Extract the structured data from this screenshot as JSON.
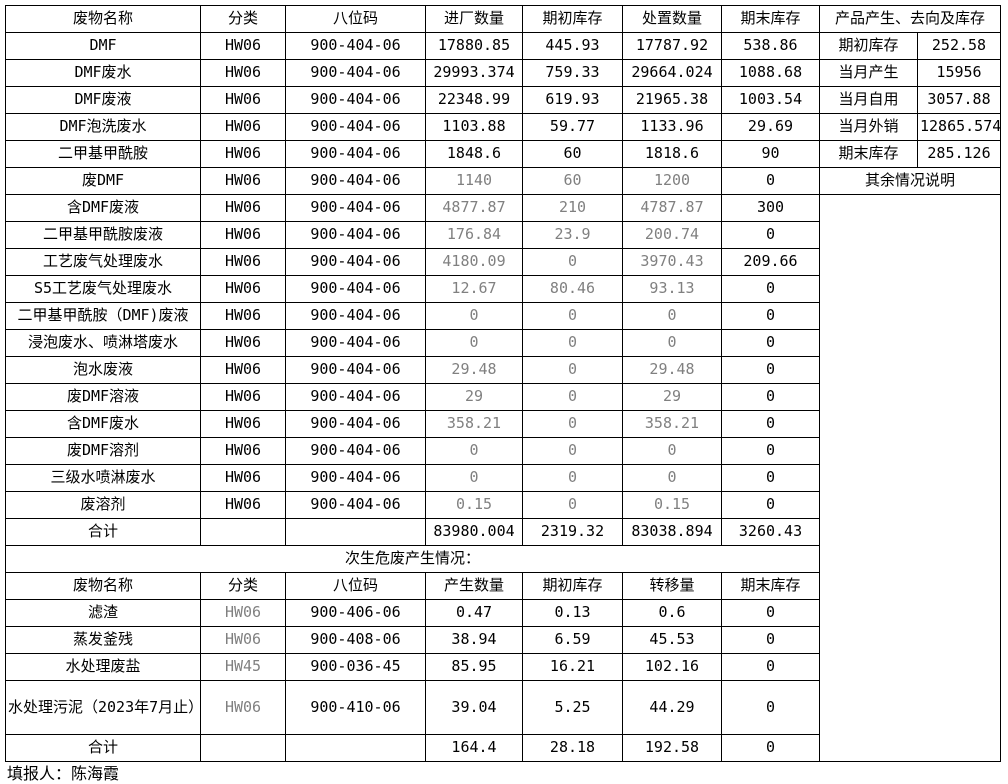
{
  "colors": {
    "text": "#000000",
    "muted_text": "#808080",
    "border": "#000000",
    "background": "#ffffff"
  },
  "table1": {
    "headers": [
      "废物名称",
      "分类",
      "八位码",
      "进厂数量",
      "期初库存",
      "处置数量",
      "期末库存"
    ],
    "side_header": "产品产生、去向及库存",
    "rows": [
      {
        "name": "DMF",
        "cat": "HW06",
        "code": "900-404-06",
        "in": "17880.85",
        "open": "445.93",
        "disp": "17787.92",
        "close": "538.86",
        "muted": false
      },
      {
        "name": "DMF废水",
        "cat": "HW06",
        "code": "900-404-06",
        "in": "29993.374",
        "open": "759.33",
        "disp": "29664.024",
        "close": "1088.68",
        "muted": false
      },
      {
        "name": "DMF废液",
        "cat": "HW06",
        "code": "900-404-06",
        "in": "22348.99",
        "open": "619.93",
        "disp": "21965.38",
        "close": "1003.54",
        "muted": false
      },
      {
        "name": "DMF泡洗废水",
        "cat": "HW06",
        "code": "900-404-06",
        "in": "1103.88",
        "open": "59.77",
        "disp": "1133.96",
        "close": "29.69",
        "muted": false
      },
      {
        "name": "二甲基甲酰胺",
        "cat": "HW06",
        "code": "900-404-06",
        "in": "1848.6",
        "open": "60",
        "disp": "1818.6",
        "close": "90",
        "muted": false
      },
      {
        "name": "废DMF",
        "cat": "HW06",
        "code": "900-404-06",
        "in": "1140",
        "open": "60",
        "disp": "1200",
        "close": "0",
        "muted": true
      },
      {
        "name": "含DMF废液",
        "cat": "HW06",
        "code": "900-404-06",
        "in": "4877.87",
        "open": "210",
        "disp": "4787.87",
        "close": "300",
        "muted": true
      },
      {
        "name": "二甲基甲酰胺废液",
        "cat": "HW06",
        "code": "900-404-06",
        "in": "176.84",
        "open": "23.9",
        "disp": "200.74",
        "close": "0",
        "muted": true
      },
      {
        "name": "工艺废气处理废水",
        "cat": "HW06",
        "code": "900-404-06",
        "in": "4180.09",
        "open": "0",
        "disp": "3970.43",
        "close": "209.66",
        "muted": true
      },
      {
        "name": "S5工艺废气处理废水",
        "cat": "HW06",
        "code": "900-404-06",
        "in": "12.67",
        "open": "80.46",
        "disp": "93.13",
        "close": "0",
        "muted": true
      },
      {
        "name": "二甲基甲酰胺（DMF)废液",
        "cat": "HW06",
        "code": "900-404-06",
        "in": "0",
        "open": "0",
        "disp": "0",
        "close": "0",
        "muted": true
      },
      {
        "name": "浸泡废水、喷淋塔废水",
        "cat": "HW06",
        "code": "900-404-06",
        "in": "0",
        "open": "0",
        "disp": "0",
        "close": "0",
        "muted": true
      },
      {
        "name": "泡水废液",
        "cat": "HW06",
        "code": "900-404-06",
        "in": "29.48",
        "open": "0",
        "disp": "29.48",
        "close": "0",
        "muted": true
      },
      {
        "name": "废DMF溶液",
        "cat": "HW06",
        "code": "900-404-06",
        "in": "29",
        "open": "0",
        "disp": "29",
        "close": "0",
        "muted": true
      },
      {
        "name": "含DMF废水",
        "cat": "HW06",
        "code": "900-404-06",
        "in": "358.21",
        "open": "0",
        "disp": "358.21",
        "close": "0",
        "muted": true
      },
      {
        "name": "废DMF溶剂",
        "cat": "HW06",
        "code": "900-404-06",
        "in": "0",
        "open": "0",
        "disp": "0",
        "close": "0",
        "muted": true
      },
      {
        "name": "三级水喷淋废水",
        "cat": "HW06",
        "code": "900-404-06",
        "in": "0",
        "open": "0",
        "disp": "0",
        "close": "0",
        "muted": true
      },
      {
        "name": "废溶剂",
        "cat": "HW06",
        "code": "900-404-06",
        "in": "0.15",
        "open": "0",
        "disp": "0.15",
        "close": "0",
        "muted": true
      }
    ],
    "total": {
      "label": "合计",
      "in": "83980.004",
      "open": "2319.32",
      "disp": "83038.894",
      "close": "3260.43"
    },
    "side_rows": [
      {
        "label": "期初库存",
        "value": "252.58"
      },
      {
        "label": "当月产生",
        "value": "15956"
      },
      {
        "label": "当月自用",
        "value": "3057.88"
      },
      {
        "label": "当月外销",
        "value": "12865.574"
      },
      {
        "label": "期末库存",
        "value": "285.126"
      }
    ],
    "side_note": "其余情况说明"
  },
  "section2_title": "次生危废产生情况：",
  "table2": {
    "headers": [
      "废物名称",
      "分类",
      "八位码",
      "产生数量",
      "期初库存",
      "转移量",
      "期末库存"
    ],
    "rows": [
      {
        "name": "滤渣",
        "cat": "HW06",
        "code": "900-406-06",
        "gen": "0.47",
        "open": "0.13",
        "trans": "0.6",
        "close": "0"
      },
      {
        "name": "蒸发釜残",
        "cat": "HW06",
        "code": "900-408-06",
        "gen": "38.94",
        "open": "6.59",
        "trans": "45.53",
        "close": "0"
      },
      {
        "name": "水处理废盐",
        "cat": "HW45",
        "code": "900-036-45",
        "gen": "85.95",
        "open": "16.21",
        "trans": "102.16",
        "close": "0"
      },
      {
        "name": "水处理污泥（2023年7月止）",
        "cat": "HW06",
        "code": "900-410-06",
        "gen": "39.04",
        "open": "5.25",
        "trans": "44.29",
        "close": "0"
      }
    ],
    "total": {
      "label": "合计",
      "gen": "164.4",
      "open": "28.18",
      "trans": "192.58",
      "close": "0"
    }
  },
  "footer": "填报人：陈海霞"
}
